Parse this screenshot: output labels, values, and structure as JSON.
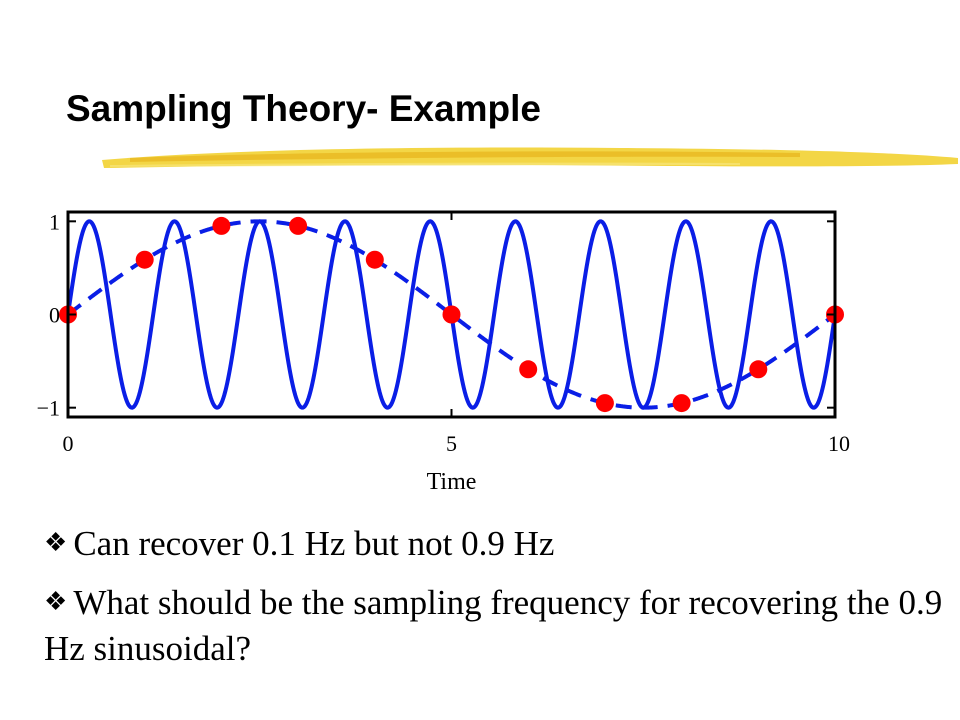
{
  "slide": {
    "title": "Sampling Theory- Example",
    "bullet_icon": "diamond-flower-bullet-icon",
    "bullets": [
      "Can recover 0.1 Hz but not 0.9 Hz",
      "What should be the sampling frequency for recovering the 0.9 Hz sinusoidal?"
    ]
  },
  "chart_data": {
    "type": "line",
    "title": "",
    "xlabel": "Time",
    "ylabel": "",
    "xlim": [
      0,
      10
    ],
    "ylim": [
      -1.1,
      1.1
    ],
    "xticks": [
      "0",
      "5",
      "10"
    ],
    "yticks": [
      "1",
      "0",
      "−1"
    ],
    "grid": false,
    "legend": "none",
    "series": [
      {
        "style": "solid",
        "color": "#0a1ee6",
        "function": "sin(2*pi*0.9*t)",
        "frequency_hz": 0.9
      },
      {
        "style": "dashed",
        "color": "#0a1ee6",
        "function": "sin(2*pi*0.1*t)",
        "frequency_hz": 0.1
      },
      {
        "style": "markers",
        "color": "#ff0000",
        "x": [
          0,
          1,
          2,
          3,
          4,
          5,
          6,
          7,
          8,
          9,
          10
        ],
        "y": [
          0,
          0.588,
          0.951,
          0.951,
          0.588,
          0,
          -0.588,
          -0.951,
          -0.951,
          -0.588,
          0
        ]
      }
    ]
  }
}
